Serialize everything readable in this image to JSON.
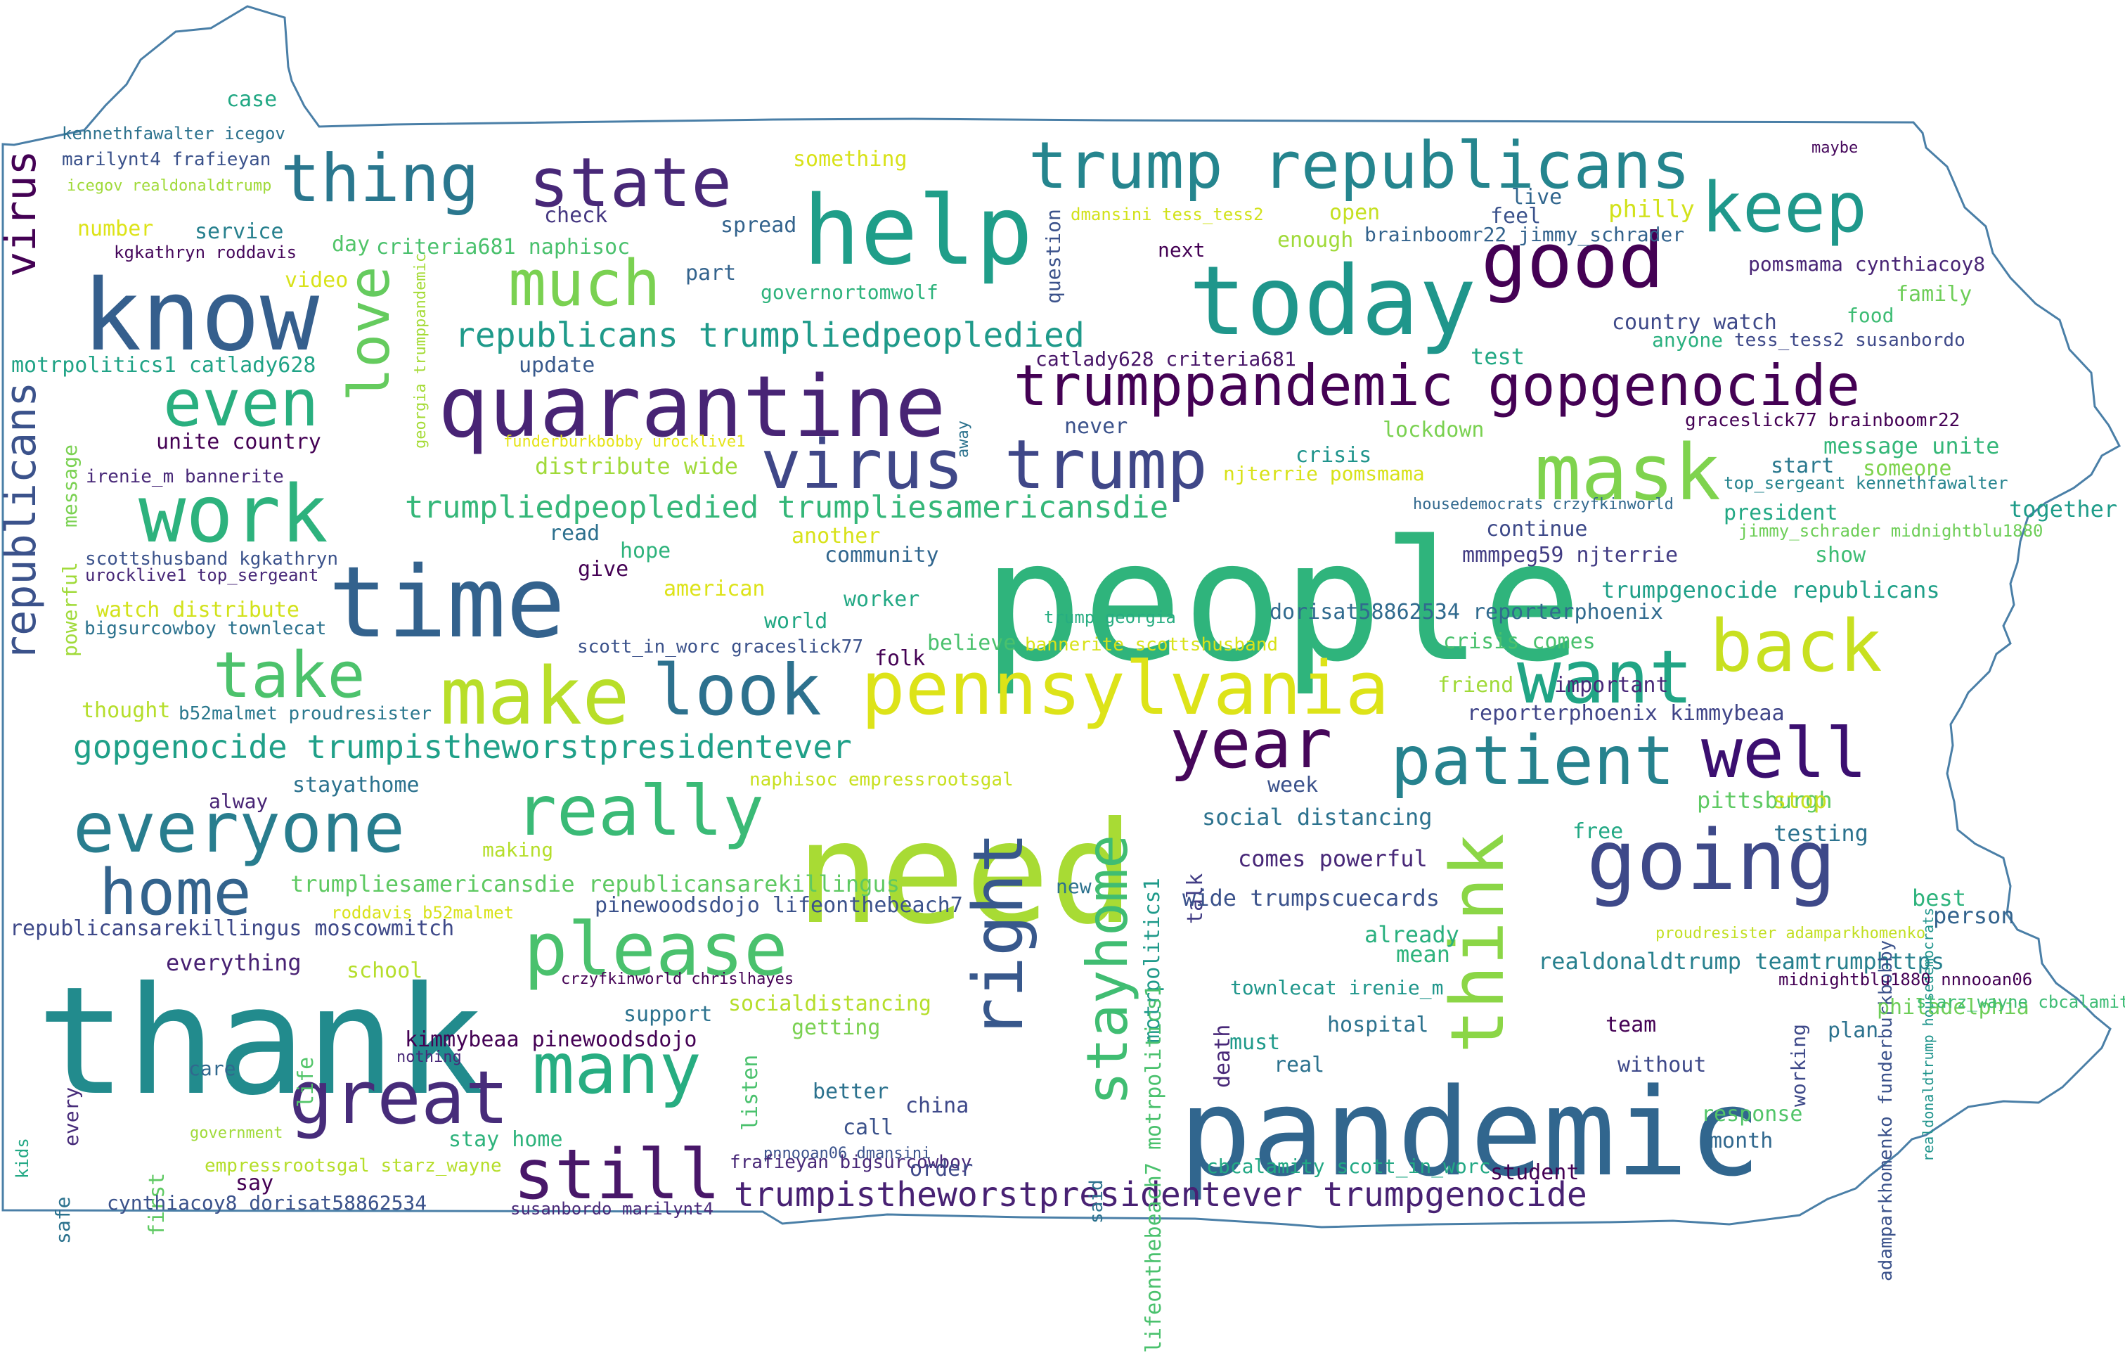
{
  "image": {
    "kind": "word cloud",
    "shape": "Pennsylvania"
  },
  "words": [
    {
      "text": "people",
      "color": "#2fb47c"
    },
    {
      "text": "thank",
      "color": "#228b8d"
    },
    {
      "text": "need",
      "color": "#a8db34"
    },
    {
      "text": "pandemic",
      "color": "#31668e"
    },
    {
      "text": "time",
      "color": "#33628d"
    },
    {
      "text": "know",
      "color": "#355f8d"
    },
    {
      "text": "help",
      "color": "#1f9e89"
    },
    {
      "text": "today",
      "color": "#1f968b"
    },
    {
      "text": "quarantine",
      "color": "#482475"
    },
    {
      "text": "work",
      "color": "#2db27d"
    },
    {
      "text": "make",
      "color": "#b8de29"
    },
    {
      "text": "pennsylvania",
      "color": "#dde318"
    },
    {
      "text": "good",
      "color": "#440154"
    },
    {
      "text": "going",
      "color": "#3e4989"
    },
    {
      "text": "great",
      "color": "#472c7a"
    },
    {
      "text": "many",
      "color": "#27ad81"
    },
    {
      "text": "still",
      "color": "#481769"
    },
    {
      "text": "everyone",
      "color": "#287d8e"
    },
    {
      "text": "right",
      "color": "#38588c"
    },
    {
      "text": "look",
      "color": "#2d718e"
    },
    {
      "text": "virus trump",
      "color": "#3f4788"
    },
    {
      "text": "trump republicans",
      "color": "#25858e"
    },
    {
      "text": "trumppandemic gopgenocide",
      "color": "#440154"
    },
    {
      "text": "state",
      "color": "#482878"
    },
    {
      "text": "thing",
      "color": "#2a778e"
    },
    {
      "text": "keep",
      "color": "#1f988b"
    },
    {
      "text": "back",
      "color": "#c8e020"
    },
    {
      "text": "want",
      "color": "#21a585"
    },
    {
      "text": "well",
      "color": "#3b0f70"
    },
    {
      "text": "year",
      "color": "#46075a"
    },
    {
      "text": "patient",
      "color": "#26828e"
    },
    {
      "text": "please",
      "color": "#4ac16d"
    },
    {
      "text": "really",
      "color": "#3aba76"
    },
    {
      "text": "home",
      "color": "#33638d"
    },
    {
      "text": "take",
      "color": "#4cc26c"
    },
    {
      "text": "even",
      "color": "#29af7f"
    },
    {
      "text": "much",
      "color": "#7ad151"
    },
    {
      "text": "love",
      "color": "#65cb5e"
    },
    {
      "text": "mask",
      "color": "#7fd34e"
    },
    {
      "text": "think",
      "color": "#8bd646"
    },
    {
      "text": "stayhome",
      "color": "#40bd72"
    },
    {
      "text": "virus",
      "color": "#440154"
    },
    {
      "text": "republicans",
      "color": "#3b528b"
    },
    {
      "text": "republicans trumpliedpeopledied",
      "color": "#1f9a8a"
    },
    {
      "text": "trumpliedpeopledied trumpliesamericansdie",
      "color": "#35b779"
    },
    {
      "text": "gopgenocide trumpistheworstpresidentever",
      "color": "#1fa088"
    },
    {
      "text": "trumpistheworstpresidentever trumpgenocide",
      "color": "#482173"
    },
    {
      "text": "case",
      "color": "#22a884"
    },
    {
      "text": "kennethfawalter icegov",
      "color": "#2c728e"
    },
    {
      "text": "marilynt4 frafieyan",
      "color": "#3b528b"
    },
    {
      "text": "icegov realdonaldtrump",
      "color": "#a0da39"
    },
    {
      "text": "something",
      "color": "#d8e219"
    },
    {
      "text": "number",
      "color": "#dde318"
    },
    {
      "text": "service",
      "color": "#27808e"
    },
    {
      "text": "check",
      "color": "#453781"
    },
    {
      "text": "spread",
      "color": "#33638d"
    },
    {
      "text": "kgkathryn roddavis",
      "color": "#46085c"
    },
    {
      "text": "day",
      "color": "#52c569"
    },
    {
      "text": "criteria681 naphisoc",
      "color": "#4ac16d"
    },
    {
      "text": "video",
      "color": "#d8e219"
    },
    {
      "text": "part",
      "color": "#33638d"
    },
    {
      "text": "governortomwolf",
      "color": "#2eb37c"
    },
    {
      "text": "georgia trumppandemic",
      "color": "#a5db36"
    },
    {
      "text": "question",
      "color": "#3b528b"
    },
    {
      "text": "dmansini tess_tess2",
      "color": "#d2e21b"
    },
    {
      "text": "open",
      "color": "#c5e021"
    },
    {
      "text": "live",
      "color": "#31668e"
    },
    {
      "text": "feel",
      "color": "#3b528b"
    },
    {
      "text": "enough",
      "color": "#a0da39"
    },
    {
      "text": "brainboomr22 jimmy_schrader",
      "color": "#33638d"
    },
    {
      "text": "philly",
      "color": "#d2e21b"
    },
    {
      "text": "next",
      "color": "#440154"
    },
    {
      "text": "maybe",
      "color": "#46085c"
    },
    {
      "text": "pomsmama cynthiacoy8",
      "color": "#482475"
    },
    {
      "text": "family",
      "color": "#6ece58"
    },
    {
      "text": "food",
      "color": "#3dbc74"
    },
    {
      "text": "country watch",
      "color": "#3e4989"
    },
    {
      "text": "anyone",
      "color": "#2ab07f"
    },
    {
      "text": "tess_tess2 susanbordo",
      "color": "#3e4989"
    },
    {
      "text": "motrpolitics1 catlady628",
      "color": "#20a386"
    },
    {
      "text": "update",
      "color": "#38598c"
    },
    {
      "text": "catlady628 criteria681",
      "color": "#481668"
    },
    {
      "text": "test",
      "color": "#22a884"
    },
    {
      "text": "never",
      "color": "#3b528b"
    },
    {
      "text": "unite country",
      "color": "#440154"
    },
    {
      "text": "funderburkbobby urocklive1",
      "color": "#e5e419"
    },
    {
      "text": "away",
      "color": "#2c728e"
    },
    {
      "text": "lockdown",
      "color": "#7ad151"
    },
    {
      "text": "graceslick77 brainboomr22",
      "color": "#440154"
    },
    {
      "text": "message unite",
      "color": "#35b779"
    },
    {
      "text": "irenie_m bannerite",
      "color": "#482878"
    },
    {
      "text": "distribute wide",
      "color": "#a0da39"
    },
    {
      "text": "crisis",
      "color": "#1f948c"
    },
    {
      "text": "njterrie pomsmama",
      "color": "#d8e219"
    },
    {
      "text": "start",
      "color": "#2a788e"
    },
    {
      "text": "someone",
      "color": "#7fd34e"
    },
    {
      "text": "top_sergeant kennethfawalter",
      "color": "#25848e"
    },
    {
      "text": "message",
      "color": "#7ad151"
    },
    {
      "text": "housedemocrats crzyfkinworld",
      "color": "#31688e"
    },
    {
      "text": "together",
      "color": "#1e9c89"
    },
    {
      "text": "president",
      "color": "#22a884"
    },
    {
      "text": "continue",
      "color": "#3e4a89"
    },
    {
      "text": "jimmy_schrader midnightblu1880",
      "color": "#6ece58"
    },
    {
      "text": "read",
      "color": "#2d708e"
    },
    {
      "text": "another",
      "color": "#d8e219"
    },
    {
      "text": "hope",
      "color": "#2eb37c"
    },
    {
      "text": "community",
      "color": "#31668e"
    },
    {
      "text": "mmmpeg59 njterrie",
      "color": "#433d84"
    },
    {
      "text": "show",
      "color": "#3dbc74"
    },
    {
      "text": "scottshusband kgkathryn",
      "color": "#3b528b"
    },
    {
      "text": "urocklive1 top_sergeant",
      "color": "#482878"
    },
    {
      "text": "give",
      "color": "#440154"
    },
    {
      "text": "american",
      "color": "#dde318"
    },
    {
      "text": "worker",
      "color": "#22a884"
    },
    {
      "text": "trumpgenocide republicans",
      "color": "#1fa088"
    },
    {
      "text": "watch distribute",
      "color": "#d2e21b"
    },
    {
      "text": "powerful",
      "color": "#a0da39"
    },
    {
      "text": "bigsurcowboy townlecat",
      "color": "#2c728e"
    },
    {
      "text": "world",
      "color": "#22a884"
    },
    {
      "text": "dorisat58862534 reporterphoenix",
      "color": "#306a8e"
    },
    {
      "text": "trump georgia",
      "color": "#27ad81"
    },
    {
      "text": "scott_in_worc graceslick77",
      "color": "#3b528b"
    },
    {
      "text": "believe",
      "color": "#4ac16d"
    },
    {
      "text": "bannerite scottshusband",
      "color": "#d8e219"
    },
    {
      "text": "crisis comes",
      "color": "#4ac16d"
    },
    {
      "text": "folk",
      "color": "#440154"
    },
    {
      "text": "friend",
      "color": "#a0da39"
    },
    {
      "text": "important",
      "color": "#482878"
    },
    {
      "text": "thought",
      "color": "#b5de2b"
    },
    {
      "text": "b52malmet proudresister",
      "color": "#2a788e"
    },
    {
      "text": "reporterphoenix kimmybeaa",
      "color": "#404588"
    },
    {
      "text": "naphisoc empressrootsgal",
      "color": "#c8e020"
    },
    {
      "text": "alway",
      "color": "#482475"
    },
    {
      "text": "stayathome",
      "color": "#2c728e"
    },
    {
      "text": "week",
      "color": "#3b528b"
    },
    {
      "text": "pittsburgh",
      "color": "#5ec962"
    },
    {
      "text": "stop",
      "color": "#c8e020"
    },
    {
      "text": "motrpolitics1",
      "color": "#1f9a8a"
    },
    {
      "text": "social distancing",
      "color": "#2c728e"
    },
    {
      "text": "talk",
      "color": "#433e85"
    },
    {
      "text": "free",
      "color": "#22a884"
    },
    {
      "text": "testing",
      "color": "#2c728e"
    },
    {
      "text": "making",
      "color": "#b5de2b"
    },
    {
      "text": "comes powerful",
      "color": "#482878"
    },
    {
      "text": "new",
      "color": "#2c728e"
    },
    {
      "text": "trumpliesamericansdie republicansarekillingus",
      "color": "#5ec962"
    },
    {
      "text": "roddavis b52malmet",
      "color": "#d8e219"
    },
    {
      "text": "pinewoodsdojo lifeonthebeach7",
      "color": "#3b528b"
    },
    {
      "text": "republicansarekillingus moscowmitch",
      "color": "#3e4989"
    },
    {
      "text": "wide trumpscuecards",
      "color": "#3b528b"
    },
    {
      "text": "best",
      "color": "#2eb37c"
    },
    {
      "text": "person",
      "color": "#33638d"
    },
    {
      "text": "already",
      "color": "#2ab07f"
    },
    {
      "text": "proudresister adamparkhomenko",
      "color": "#c2df23"
    },
    {
      "text": "everything",
      "color": "#482173"
    },
    {
      "text": "school",
      "color": "#b5de2b"
    },
    {
      "text": "lifeonthebeach7 motrpolitics1",
      "color": "#4ac16d"
    },
    {
      "text": "mean",
      "color": "#2eb37c"
    },
    {
      "text": "realdonaldtrump teamtrumphttps",
      "color": "#27808e"
    },
    {
      "text": "adamparkhomenko funderburkbobby",
      "color": "#3b528b"
    },
    {
      "text": "realdonaldtrump housedemocrats",
      "color": "#1f948c"
    },
    {
      "text": "midnightblu1880 nnnooan06",
      "color": "#440154"
    },
    {
      "text": "crzyfkinworld chrislhayes",
      "color": "#440154"
    },
    {
      "text": "socialdistancing",
      "color": "#b5de2b"
    },
    {
      "text": "townlecat irenie_m",
      "color": "#1f968b"
    },
    {
      "text": "death",
      "color": "#482878"
    },
    {
      "text": "philadelphia",
      "color": "#6ece58"
    },
    {
      "text": "starz_wayne cbcalamity",
      "color": "#3dbc74"
    },
    {
      "text": "support",
      "color": "#2c728e"
    },
    {
      "text": "getting",
      "color": "#7ad151"
    },
    {
      "text": "hospital",
      "color": "#2c728e"
    },
    {
      "text": "team",
      "color": "#440154"
    },
    {
      "text": "working",
      "color": "#3e4989"
    },
    {
      "text": "plan",
      "color": "#2c728e"
    },
    {
      "text": "kimmybeaa pinewoodsdojo",
      "color": "#440154"
    },
    {
      "text": "listen",
      "color": "#4ac16d"
    },
    {
      "text": "life",
      "color": "#52c569"
    },
    {
      "text": "must",
      "color": "#1f9a8a"
    },
    {
      "text": "care",
      "color": "#31688e"
    },
    {
      "text": "nothing",
      "color": "#482878"
    },
    {
      "text": "real",
      "color": "#2c728e"
    },
    {
      "text": "without",
      "color": "#3e4989"
    },
    {
      "text": "kids",
      "color": "#22a884"
    },
    {
      "text": "every",
      "color": "#472c7a"
    },
    {
      "text": "first",
      "color": "#5ec962"
    },
    {
      "text": "better",
      "color": "#2c728e"
    },
    {
      "text": "china",
      "color": "#3e4989"
    },
    {
      "text": "response",
      "color": "#52c569"
    },
    {
      "text": "government",
      "color": "#a0da39"
    },
    {
      "text": "stay home",
      "color": "#2eb37c"
    },
    {
      "text": "call",
      "color": "#3b528b"
    },
    {
      "text": "month",
      "color": "#31688e"
    },
    {
      "text": "pnnooan06 dmansini",
      "color": "#3b528b"
    },
    {
      "text": "frafieyan bigsurcowboy",
      "color": "#482878"
    },
    {
      "text": "order",
      "color": "#3e4989"
    },
    {
      "text": "said",
      "color": "#2c728e"
    },
    {
      "text": "cbcalamity scott_in_worc",
      "color": "#22a884"
    },
    {
      "text": "student",
      "color": "#440154"
    },
    {
      "text": "empressrootsgal starz_wayne",
      "color": "#b5de2b"
    },
    {
      "text": "safe",
      "color": "#2c728e"
    },
    {
      "text": "say",
      "color": "#440154"
    },
    {
      "text": "cynthiacoy8 dorisat58862534",
      "color": "#3b528b"
    },
    {
      "text": "susanbordo marilynt4",
      "color": "#482878"
    }
  ]
}
